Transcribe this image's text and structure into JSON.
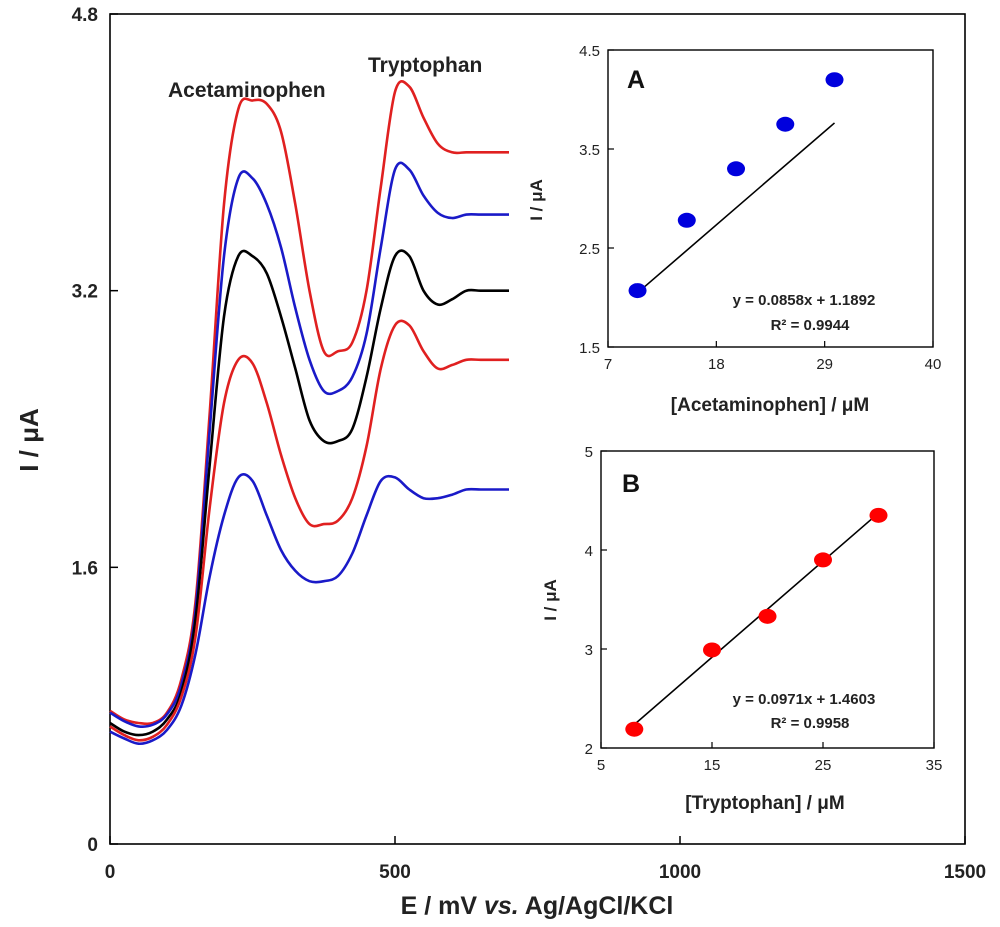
{
  "colors": {
    "red": "#e02020",
    "blue": "#1a1ac8",
    "black": "#000000",
    "red_point": "#ff0000",
    "blue_point": "#0000dd"
  },
  "chart_data": [
    {
      "id": "main",
      "type": "line",
      "xlabel_main": "E / mV ",
      "xlabel_italic": "vs.",
      "xlabel_tail": " Ag/AgCl/KCl",
      "ylabel": "I / μA",
      "xlim": [
        0,
        1500
      ],
      "ylim": [
        0,
        4.8
      ],
      "xticks": [
        "0",
        "500",
        "1000",
        "1500"
      ],
      "yticks": [
        "0",
        "1.6",
        "3.2",
        "4.8"
      ],
      "annotations": [
        "Acetaminophen",
        "Tryptophan"
      ],
      "x": [
        0,
        25,
        50,
        75,
        100,
        125,
        150,
        175,
        200,
        225,
        250,
        275,
        300,
        325,
        350,
        375,
        400,
        425,
        450,
        475,
        500,
        525,
        550,
        575,
        600,
        625,
        650,
        675,
        700
      ],
      "series": [
        {
          "color": "red",
          "values": [
            0.77,
            0.72,
            0.7,
            0.7,
            0.76,
            0.95,
            1.4,
            2.5,
            3.7,
            4.25,
            4.3,
            4.28,
            4.12,
            3.7,
            3.2,
            2.85,
            2.85,
            2.9,
            3.2,
            3.8,
            4.35,
            4.38,
            4.2,
            4.05,
            4.0,
            4.0,
            4.0,
            4.0,
            4.0
          ]
        },
        {
          "color": "blue",
          "values": [
            0.76,
            0.71,
            0.68,
            0.69,
            0.75,
            0.92,
            1.35,
            2.4,
            3.4,
            3.85,
            3.85,
            3.7,
            3.45,
            3.1,
            2.8,
            2.62,
            2.62,
            2.7,
            2.95,
            3.45,
            3.9,
            3.9,
            3.75,
            3.65,
            3.62,
            3.64,
            3.64,
            3.64,
            3.64
          ]
        },
        {
          "color": "black",
          "values": [
            0.7,
            0.65,
            0.63,
            0.65,
            0.72,
            0.88,
            1.3,
            2.2,
            3.05,
            3.4,
            3.4,
            3.3,
            3.05,
            2.75,
            2.45,
            2.33,
            2.33,
            2.4,
            2.7,
            3.1,
            3.4,
            3.4,
            3.2,
            3.12,
            3.15,
            3.2,
            3.2,
            3.2,
            3.2
          ]
        },
        {
          "color": "red",
          "values": [
            0.68,
            0.63,
            0.6,
            0.62,
            0.69,
            0.85,
            1.2,
            1.95,
            2.55,
            2.8,
            2.78,
            2.55,
            2.25,
            2.0,
            1.85,
            1.85,
            1.87,
            2.0,
            2.3,
            2.75,
            3.0,
            3.0,
            2.85,
            2.75,
            2.77,
            2.8,
            2.8,
            2.8,
            2.8
          ]
        },
        {
          "color": "blue",
          "values": [
            0.65,
            0.61,
            0.58,
            0.6,
            0.66,
            0.8,
            1.1,
            1.55,
            1.9,
            2.12,
            2.1,
            1.9,
            1.7,
            1.58,
            1.52,
            1.52,
            1.55,
            1.68,
            1.9,
            2.1,
            2.12,
            2.05,
            2.0,
            2.0,
            2.02,
            2.05,
            2.05,
            2.05,
            2.05
          ]
        }
      ]
    },
    {
      "id": "A",
      "type": "scatter",
      "panel_label": "A",
      "xlabel": "[Acetaminophen] / μM",
      "ylabel": "I / μA",
      "xlim": [
        7,
        40
      ],
      "ylim": [
        1.5,
        4.5
      ],
      "xticks": [
        "7",
        "18",
        "29",
        "40"
      ],
      "yticks": [
        "1.5",
        "2.5",
        "3.5",
        "4.5"
      ],
      "x": [
        10,
        15,
        20,
        25,
        30
      ],
      "y": [
        2.07,
        2.78,
        3.3,
        3.75,
        4.2
      ],
      "fit": {
        "slope": 0.0858,
        "intercept": 1.1892,
        "equation": "y = 0.0858x  + 1.1892",
        "r2": "R² = 0.9944"
      },
      "point_color": "blue_point"
    },
    {
      "id": "B",
      "type": "scatter",
      "panel_label": "B",
      "xlabel": "[Tryptophan] / μM",
      "ylabel": "I / μA",
      "xlim": [
        5,
        35
      ],
      "ylim": [
        2,
        5
      ],
      "xticks": [
        "5",
        "15",
        "25",
        "35"
      ],
      "yticks": [
        "2",
        "3",
        "4",
        "5"
      ],
      "x": [
        8,
        15,
        20,
        25,
        30
      ],
      "y": [
        2.19,
        2.99,
        3.33,
        3.9,
        4.35
      ],
      "fit": {
        "slope": 0.0971,
        "intercept": 1.4603,
        "equation": "y = 0.0971x  + 1.4603",
        "r2": "R² = 0.9958"
      },
      "point_color": "red_point"
    }
  ]
}
